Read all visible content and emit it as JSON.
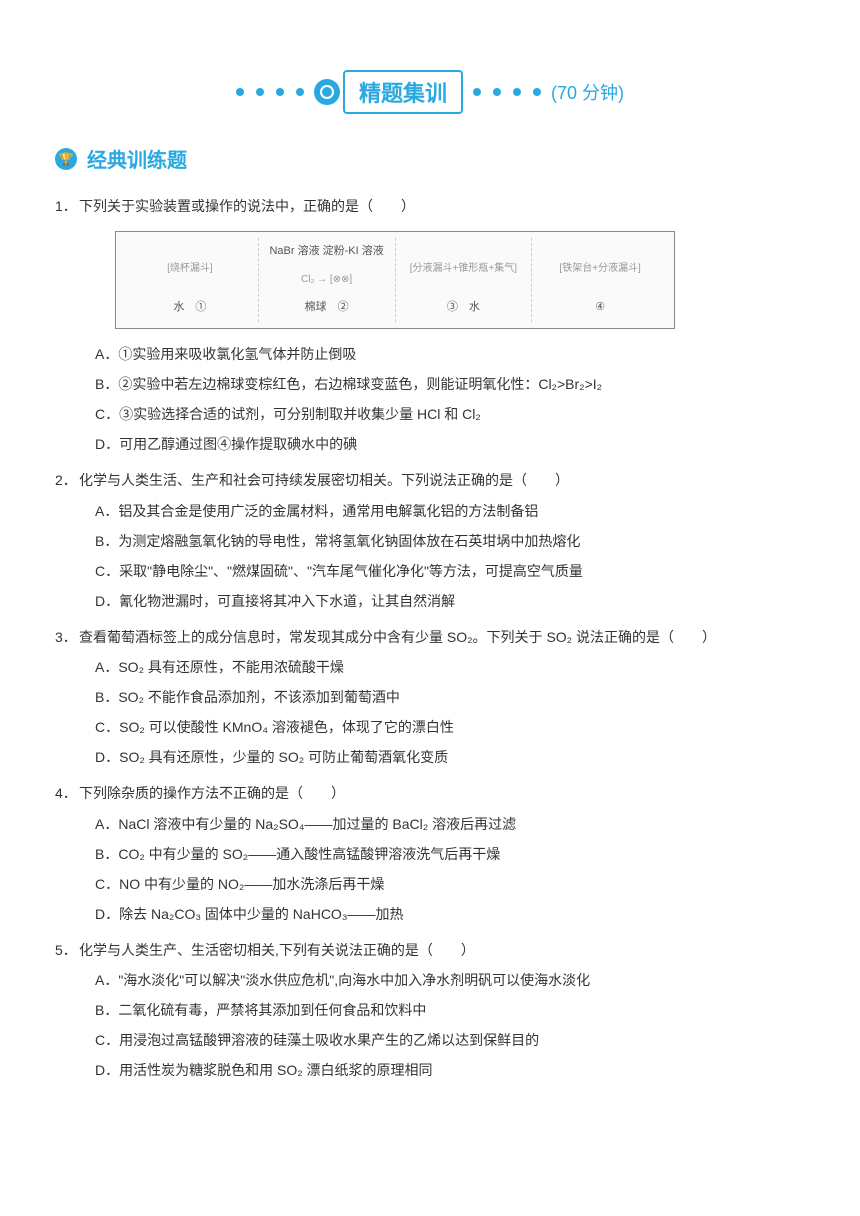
{
  "header": {
    "title": "精题集训",
    "time": "(70 分钟)"
  },
  "section": {
    "title": "经典训练题"
  },
  "diagram": {
    "label2_top": "NaBr 溶液  淀粉-KI 溶液",
    "label2_mid": "Cl₂",
    "label2_bottom": "棉球",
    "label1_bottom": "水",
    "label3_bottom": "水",
    "num1": "①",
    "num2": "②",
    "num3": "③",
    "num4": "④"
  },
  "questions": [
    {
      "num": "1．",
      "stem": "下列关于实验装置或操作的说法中，正确的是（　　）",
      "hasDiagram": true,
      "options": [
        "A．①实验用来吸收氯化氢气体并防止倒吸",
        "B．②实验中若左边棉球变棕红色，右边棉球变蓝色，则能证明氧化性：Cl₂>Br₂>I₂",
        "C．③实验选择合适的试剂，可分别制取并收集少量 HCl 和 Cl₂",
        "D．可用乙醇通过图④操作提取碘水中的碘"
      ]
    },
    {
      "num": "2．",
      "stem": "化学与人类生活、生产和社会可持续发展密切相关。下列说法正确的是（　　）",
      "options": [
        "A．铝及其合金是使用广泛的金属材料，通常用电解氯化铝的方法制备铝",
        "B．为测定熔融氢氧化钠的导电性，常将氢氧化钠固体放在石英坩埚中加热熔化",
        "C．采取\"静电除尘\"、\"燃煤固硫\"、\"汽车尾气催化净化\"等方法，可提高空气质量",
        "D．氰化物泄漏时，可直接将其冲入下水道，让其自然消解"
      ]
    },
    {
      "num": "3．",
      "stem": "查看葡萄酒标签上的成分信息时，常发现其成分中含有少量 SO₂。下列关于 SO₂ 说法正确的是（　　）",
      "options": [
        "A．SO₂ 具有还原性，不能用浓硫酸干燥",
        "B．SO₂ 不能作食品添加剂，不该添加到葡萄酒中",
        "C．SO₂ 可以使酸性 KMnO₄ 溶液褪色，体现了它的漂白性",
        "D．SO₂ 具有还原性，少量的 SO₂ 可防止葡萄酒氧化变质"
      ]
    },
    {
      "num": "4．",
      "stem": "下列除杂质的操作方法不正确的是（　　）",
      "options": [
        "A．NaCl 溶液中有少量的 Na₂SO₄——加过量的 BaCl₂ 溶液后再过滤",
        "B．CO₂ 中有少量的 SO₂——通入酸性高锰酸钾溶液洗气后再干燥",
        "C．NO 中有少量的 NO₂——加水洗涤后再干燥",
        "D．除去 Na₂CO₃ 固体中少量的 NaHCO₃——加热"
      ]
    },
    {
      "num": "5．",
      "stem": "化学与人类生产、生活密切相关,下列有关说法正确的是（　　）",
      "options": [
        "A．\"海水淡化\"可以解决\"淡水供应危机\",向海水中加入净水剂明矾可以使海水淡化",
        "B．二氧化硫有毒，严禁将其添加到任何食品和饮料中",
        "C．用浸泡过高锰酸钾溶液的硅藻土吸收水果产生的乙烯以达到保鲜目的",
        "D．用活性炭为糖浆脱色和用 SO₂ 漂白纸浆的原理相同"
      ]
    }
  ]
}
